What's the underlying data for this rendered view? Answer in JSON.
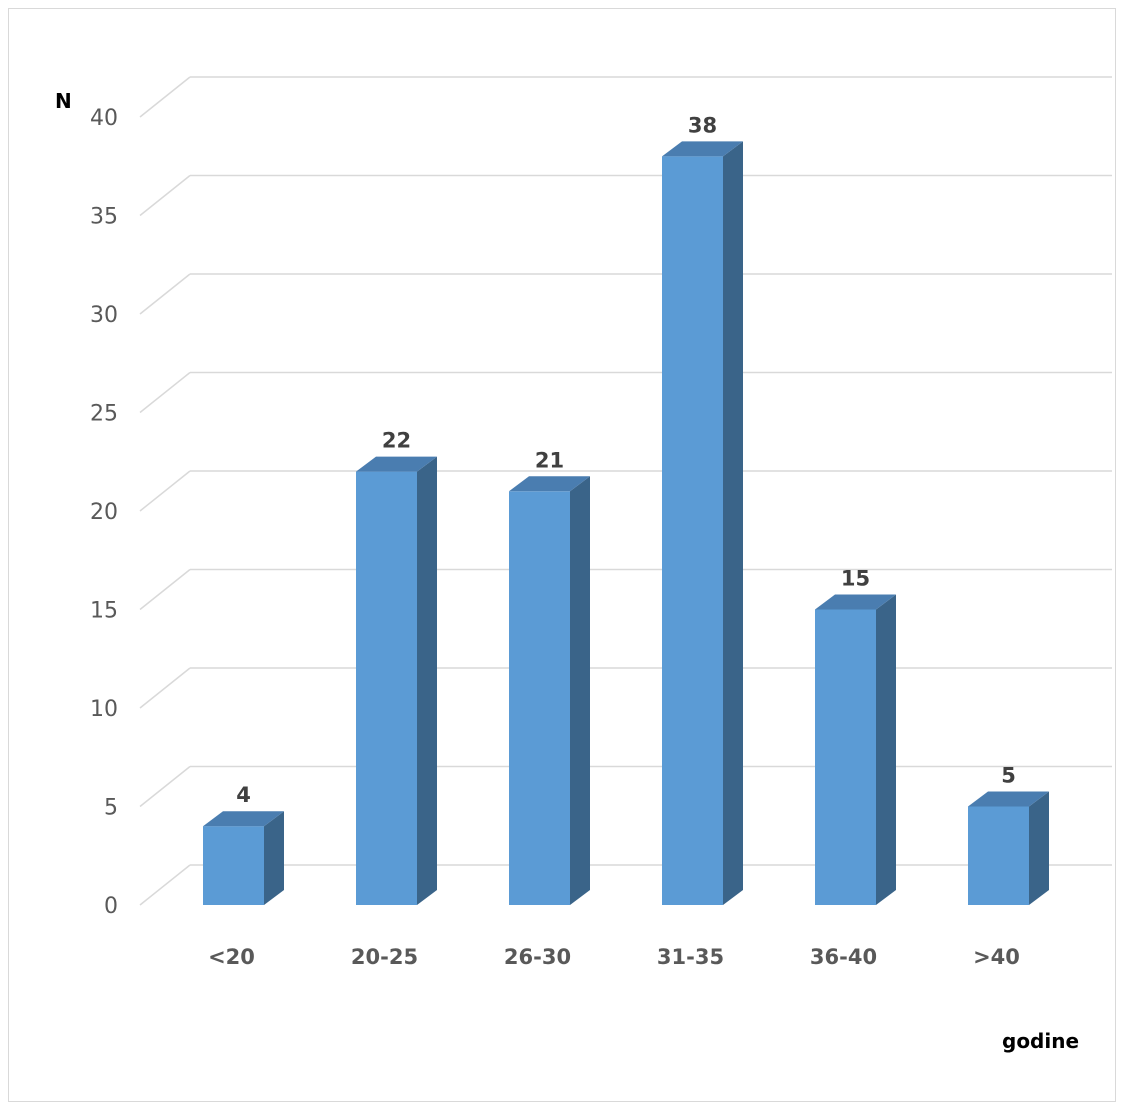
{
  "chart_data": {
    "type": "bar",
    "style": "3d-column",
    "categories": [
      "<20",
      "20-25",
      "26-30",
      "31-35",
      "36-40",
      ">40"
    ],
    "values": [
      4,
      22,
      21,
      38,
      15,
      5
    ],
    "data_labels": [
      "4",
      "22",
      "21",
      "38",
      "15",
      "5"
    ],
    "title": "",
    "xlabel": "godine",
    "ylabel": "N",
    "ylim": [
      0,
      40
    ],
    "yticks": [
      "0",
      "5",
      "10",
      "15",
      "20",
      "25",
      "30",
      "35",
      "40"
    ],
    "grid": true,
    "legend": "none",
    "colors": {
      "bar_front": "#5b9bd5",
      "bar_side": "#3a6489",
      "bar_top": "#4a7db0",
      "grid": "#d9d9d9",
      "tick_text": "#595959",
      "label_text": "#404040"
    }
  }
}
